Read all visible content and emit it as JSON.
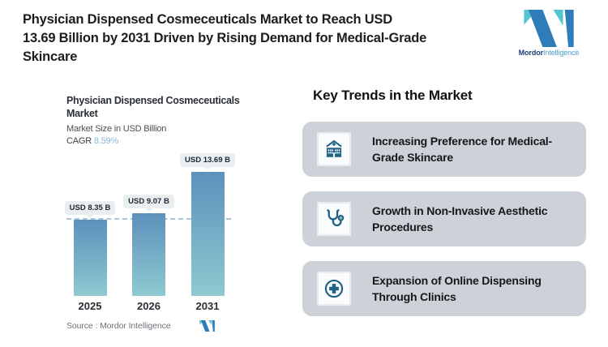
{
  "header": {
    "headline": "Physician Dispensed Cosmeceuticals Market to Reach USD\n13.69 Billion by 2031 Driven by Rising Demand for Medical-Grade\nSkincare",
    "logo": {
      "brand_bold": "Mordor",
      "brand_light": "Intelligence",
      "teal": "#54c6d2",
      "blue": "#2e7cb8",
      "text_dark": "#1a3d73",
      "text_light": "#4a9bd0"
    }
  },
  "chart": {
    "title": "Physician Dispensed Cosmeceuticals\nMarket",
    "subtitle": "Market Size in USD Billion",
    "cagr_label": "CAGR",
    "cagr_value": "8.59%",
    "source": "Source :  Mordor Intelligence"
  },
  "chart_data": {
    "type": "bar",
    "title": "Physician Dispensed Cosmeceuticals Market",
    "ylabel": "Market Size in USD Billion",
    "categories": [
      "2025",
      "2026",
      "2031"
    ],
    "values": [
      8.35,
      9.07,
      13.69
    ],
    "bar_labels": [
      "USD 8.35 B",
      "USD 9.07 B",
      "USD 13.69 B"
    ],
    "cagr": "8.59%",
    "ylim": [
      0,
      15.5
    ],
    "grid": false,
    "legend": "none",
    "reference_line": 8.35,
    "reference_line_color": "#a9c6da",
    "bar_gradient": [
      "#5d90bc",
      "#8fc9d0"
    ],
    "label_bg": "#e9eef1",
    "cagr_color": "#83b8d8"
  },
  "trends": {
    "heading": "Key Trends in the Market",
    "card_bg": "#cdd2d8",
    "icon_color": "#1e6385",
    "items": [
      {
        "icon": "hospital-icon",
        "text": "Increasing Preference for Medical-Grade Skincare"
      },
      {
        "icon": "stethoscope-icon",
        "text": "Growth in Non-Invasive Aesthetic Procedures"
      },
      {
        "icon": "medical-cross-icon",
        "text": "Expansion of Online Dispensing Through Clinics"
      }
    ]
  }
}
